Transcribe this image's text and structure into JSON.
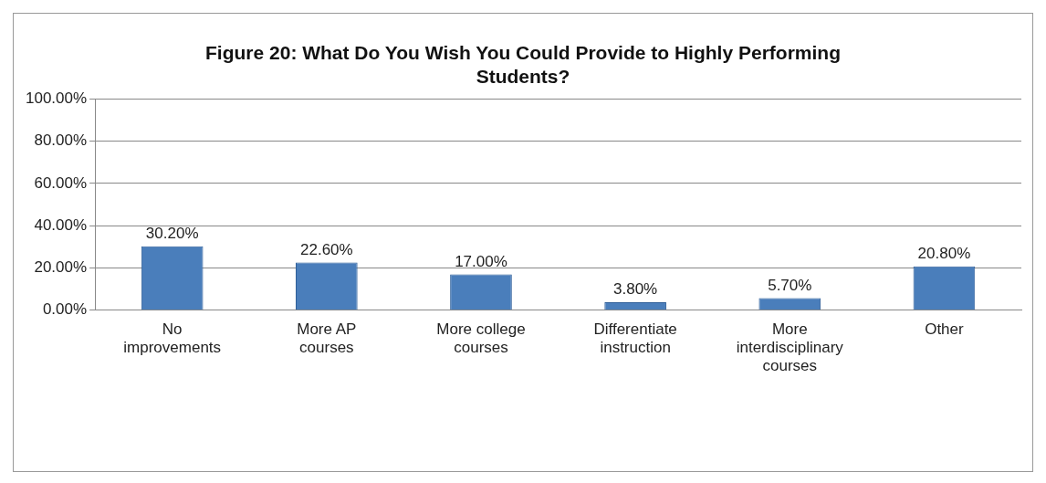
{
  "chart_data": {
    "type": "bar",
    "title": "Figure 20: What Do You Wish You Could Provide to Highly Performing Students?",
    "categories": [
      "No improvements",
      "More AP courses",
      "More college courses",
      "Differentiate instruction",
      "More interdisciplinary courses",
      "Other"
    ],
    "values": [
      30.2,
      22.6,
      17.0,
      3.8,
      5.7,
      20.8
    ],
    "value_labels": [
      "30.20%",
      "22.60%",
      "17.00%",
      "3.80%",
      "5.70%",
      "20.80%"
    ],
    "color": "#4a7ebb",
    "ylim": [
      0,
      100
    ],
    "yticks": [
      {
        "value": 0,
        "label": "0.00%"
      },
      {
        "value": 20,
        "label": "20.00%"
      },
      {
        "value": 40,
        "label": "40.00%"
      },
      {
        "value": 60,
        "label": "60.00%"
      },
      {
        "value": 80,
        "label": "80.00%"
      },
      {
        "value": 100,
        "label": "100.00%"
      }
    ],
    "grid": "y",
    "legend": false
  }
}
